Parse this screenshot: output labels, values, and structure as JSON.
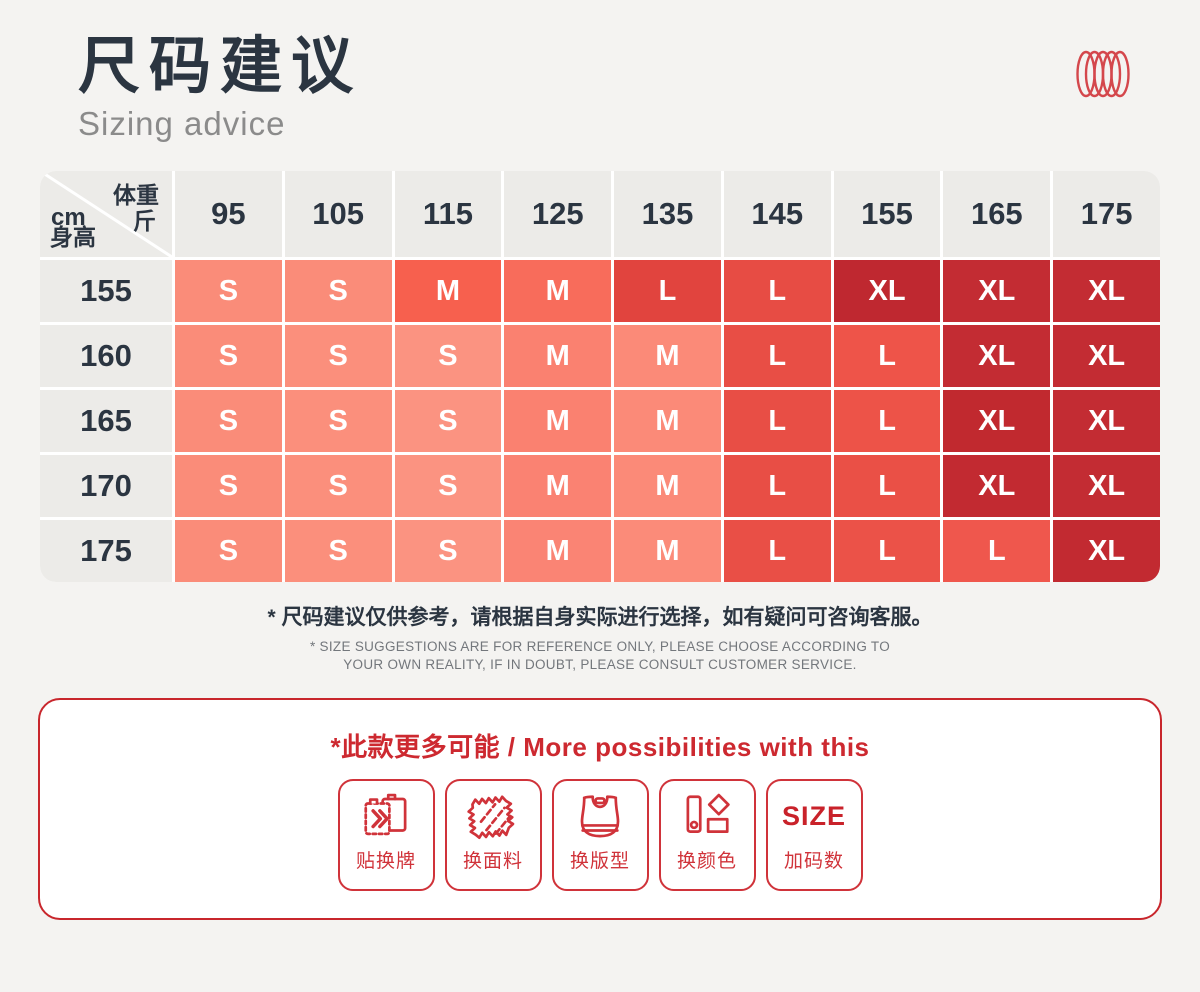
{
  "colors": {
    "page_bg": "#F4F3F1",
    "navy": "#2B3541",
    "accent_red": "#CD2930",
    "header_cell_bg": "#ECEBE8",
    "subtitle_gray": "#8B8B8B",
    "footnote_gray": "#73777C"
  },
  "header": {
    "title": "尺码建议",
    "subtitle": "Sizing advice"
  },
  "chart_data": {
    "type": "table",
    "title": "尺码建议 / Sizing advice",
    "corner": {
      "weight_label": "体重",
      "weight_unit": "斤",
      "height_unit": "cm",
      "height_label": "身高"
    },
    "columns": [
      "95",
      "105",
      "115",
      "125",
      "135",
      "145",
      "155",
      "165",
      "175"
    ],
    "rows": [
      {
        "height": "155",
        "cells": [
          {
            "label": "S",
            "color": "#FA8C79"
          },
          {
            "label": "S",
            "color": "#FA8C79"
          },
          {
            "label": "M",
            "color": "#F7604E"
          },
          {
            "label": "M",
            "color": "#F86C5B"
          },
          {
            "label": "L",
            "color": "#E1443E"
          },
          {
            "label": "L",
            "color": "#E74C44"
          },
          {
            "label": "XL",
            "color": "#BF2830"
          },
          {
            "label": "XL",
            "color": "#C32C33"
          },
          {
            "label": "XL",
            "color": "#C32C33"
          }
        ]
      },
      {
        "height": "160",
        "cells": [
          {
            "label": "S",
            "color": "#FA8C79"
          },
          {
            "label": "S",
            "color": "#FB8F7C"
          },
          {
            "label": "S",
            "color": "#FB9381"
          },
          {
            "label": "M",
            "color": "#FA8170"
          },
          {
            "label": "M",
            "color": "#FB8A78"
          },
          {
            "label": "L",
            "color": "#E84E45"
          },
          {
            "label": "L",
            "color": "#EE5449"
          },
          {
            "label": "XL",
            "color": "#C32C33"
          },
          {
            "label": "XL",
            "color": "#C32C33"
          }
        ]
      },
      {
        "height": "165",
        "cells": [
          {
            "label": "S",
            "color": "#FA8C79"
          },
          {
            "label": "S",
            "color": "#FB8F7C"
          },
          {
            "label": "S",
            "color": "#FB9381"
          },
          {
            "label": "M",
            "color": "#FA8170"
          },
          {
            "label": "M",
            "color": "#FB8A78"
          },
          {
            "label": "L",
            "color": "#E84E45"
          },
          {
            "label": "L",
            "color": "#ED5348"
          },
          {
            "label": "XL",
            "color": "#C1292F"
          },
          {
            "label": "XL",
            "color": "#C32C33"
          }
        ]
      },
      {
        "height": "170",
        "cells": [
          {
            "label": "S",
            "color": "#FA8C79"
          },
          {
            "label": "S",
            "color": "#FB8F7C"
          },
          {
            "label": "S",
            "color": "#FB9381"
          },
          {
            "label": "M",
            "color": "#FA8272"
          },
          {
            "label": "M",
            "color": "#FB8A78"
          },
          {
            "label": "L",
            "color": "#E84E45"
          },
          {
            "label": "L",
            "color": "#EA5046"
          },
          {
            "label": "XL",
            "color": "#C22A31"
          },
          {
            "label": "XL",
            "color": "#C32C33"
          }
        ]
      },
      {
        "height": "175",
        "cells": [
          {
            "label": "S",
            "color": "#FA8C79"
          },
          {
            "label": "S",
            "color": "#FB8F7C"
          },
          {
            "label": "S",
            "color": "#FB9381"
          },
          {
            "label": "M",
            "color": "#FA8474"
          },
          {
            "label": "M",
            "color": "#FB8B79"
          },
          {
            "label": "L",
            "color": "#E94F46"
          },
          {
            "label": "L",
            "color": "#EB5248"
          },
          {
            "label": "L",
            "color": "#EF574D"
          },
          {
            "label": "XL",
            "color": "#C22A31"
          }
        ]
      }
    ]
  },
  "footnote": {
    "zh": "* 尺码建议仅供参考，请根据自身实际进行选择，如有疑问可咨询客服。",
    "en_line1": "* SIZE SUGGESTIONS ARE FOR REFERENCE ONLY, PLEASE CHOOSE ACCORDING TO",
    "en_line2": "YOUR OWN REALITY, IF IN DOUBT, PLEASE CONSULT CUSTOMER SERVICE."
  },
  "possibilities": {
    "title": "*此款更多可能 / More possibilities with this",
    "items": [
      {
        "label": "贴换牌",
        "icon": "swap-tag-icon"
      },
      {
        "label": "换面料",
        "icon": "fabric-icon"
      },
      {
        "label": "换版型",
        "icon": "bra-pattern-icon"
      },
      {
        "label": "换颜色",
        "icon": "color-swatch-icon"
      },
      {
        "label": "加码数",
        "icon": "size-text-icon",
        "icon_text": "SIZE"
      }
    ]
  }
}
